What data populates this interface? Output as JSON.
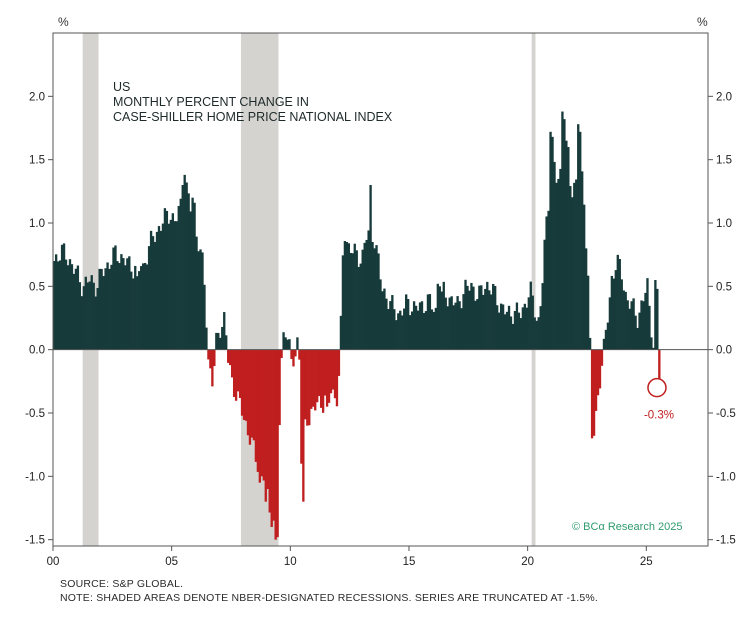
{
  "chart_data": {
    "type": "bar",
    "title_lines": [
      "US",
      "MONTHLY PERCENT CHANGE IN",
      "CASE-SHILLER HOME PRICE NATIONAL INDEX"
    ],
    "y_unit_left": "%",
    "y_unit_right": "%",
    "ylim": [
      -1.55,
      2.5
    ],
    "y_ticks": [
      "2.0",
      "1.5",
      "1.0",
      "0.5",
      "0.0",
      "-0.5",
      "-1.0",
      "-1.5"
    ],
    "y_tick_values": [
      2.0,
      1.5,
      1.0,
      0.5,
      0.0,
      -0.5,
      -1.0,
      -1.5
    ],
    "xlim": [
      2000.0,
      2027.6
    ],
    "x_ticks": [
      "00",
      "05",
      "10",
      "15",
      "20",
      "25"
    ],
    "x_tick_values": [
      2000,
      2005,
      2010,
      2015,
      2020,
      2025
    ],
    "recessions": [
      [
        2001.25,
        2001.92
      ],
      [
        2007.92,
        2009.5
      ],
      [
        2020.17,
        2020.33
      ]
    ],
    "truncated_at": -1.5,
    "anchors": [
      [
        2000.0,
        0.7
      ],
      [
        2000.3,
        0.78
      ],
      [
        2000.6,
        0.72
      ],
      [
        2000.9,
        0.62
      ],
      [
        2001.2,
        0.5
      ],
      [
        2001.5,
        0.55
      ],
      [
        2001.8,
        0.5
      ],
      [
        2002.0,
        0.6
      ],
      [
        2002.3,
        0.68
      ],
      [
        2002.6,
        0.76
      ],
      [
        2002.9,
        0.72
      ],
      [
        2003.2,
        0.66
      ],
      [
        2003.5,
        0.64
      ],
      [
        2003.7,
        0.6
      ],
      [
        2004.0,
        0.82
      ],
      [
        2004.3,
        0.92
      ],
      [
        2004.6,
        1.02
      ],
      [
        2004.9,
        1.08
      ],
      [
        2005.1,
        1.0
      ],
      [
        2005.4,
        1.18
      ],
      [
        2005.6,
        1.22
      ],
      [
        2005.9,
        1.0
      ],
      [
        2006.1,
        0.84
      ],
      [
        2006.3,
        0.62
      ],
      [
        2006.4,
        0.3
      ],
      [
        2006.5,
        -0.08
      ],
      [
        2006.7,
        -0.28
      ],
      [
        2006.8,
        0.02
      ],
      [
        2007.0,
        0.18
      ],
      [
        2007.2,
        0.26
      ],
      [
        2007.3,
        -0.05
      ],
      [
        2007.5,
        -0.25
      ],
      [
        2007.8,
        -0.42
      ],
      [
        2008.1,
        -0.6
      ],
      [
        2008.3,
        -0.72
      ],
      [
        2008.5,
        -0.86
      ],
      [
        2008.7,
        -0.95
      ],
      [
        2008.9,
        -1.02
      ],
      [
        2009.1,
        -1.3
      ],
      [
        2009.3,
        -1.48
      ],
      [
        2009.45,
        -0.95
      ],
      [
        2009.55,
        -0.2
      ],
      [
        2009.7,
        0.22
      ],
      [
        2009.85,
        0.1
      ],
      [
        2010.0,
        -0.12
      ],
      [
        2010.15,
        -0.06
      ],
      [
        2010.3,
        0.14
      ],
      [
        2010.4,
        -0.4
      ],
      [
        2010.6,
        -0.62
      ],
      [
        2010.8,
        -0.5
      ],
      [
        2011.0,
        -0.45
      ],
      [
        2011.3,
        -0.42
      ],
      [
        2011.6,
        -0.3
      ],
      [
        2011.9,
        -0.4
      ],
      [
        2012.0,
        -0.2
      ],
      [
        2012.1,
        0.25
      ],
      [
        2012.2,
        0.95
      ],
      [
        2012.4,
        0.82
      ],
      [
        2012.6,
        0.78
      ],
      [
        2012.8,
        0.72
      ],
      [
        2013.0,
        0.75
      ],
      [
        2013.2,
        0.92
      ],
      [
        2013.4,
        0.88
      ],
      [
        2013.6,
        0.78
      ],
      [
        2013.8,
        0.5
      ],
      [
        2014.0,
        0.42
      ],
      [
        2014.3,
        0.32
      ],
      [
        2014.6,
        0.28
      ],
      [
        2014.9,
        0.38
      ],
      [
        2015.2,
        0.32
      ],
      [
        2015.5,
        0.35
      ],
      [
        2015.8,
        0.38
      ],
      [
        2016.1,
        0.3
      ],
      [
        2016.4,
        0.45
      ],
      [
        2016.7,
        0.4
      ],
      [
        2017.0,
        0.35
      ],
      [
        2017.3,
        0.48
      ],
      [
        2017.6,
        0.5
      ],
      [
        2017.9,
        0.42
      ],
      [
        2018.2,
        0.52
      ],
      [
        2018.5,
        0.46
      ],
      [
        2018.8,
        0.35
      ],
      [
        2019.1,
        0.28
      ],
      [
        2019.4,
        0.3
      ],
      [
        2019.7,
        0.28
      ],
      [
        2019.9,
        0.4
      ],
      [
        2020.1,
        0.45
      ],
      [
        2020.25,
        0.32
      ],
      [
        2020.4,
        0.2
      ],
      [
        2020.55,
        0.45
      ],
      [
        2020.7,
        0.9
      ],
      [
        2020.9,
        1.3
      ],
      [
        2021.0,
        1.55
      ],
      [
        2021.2,
        1.3
      ],
      [
        2021.4,
        1.42
      ],
      [
        2021.6,
        1.55
      ],
      [
        2021.8,
        1.22
      ],
      [
        2022.0,
        1.35
      ],
      [
        2022.2,
        1.42
      ],
      [
        2022.35,
        1.1
      ],
      [
        2022.5,
        0.6
      ],
      [
        2022.6,
        -0.05
      ],
      [
        2022.7,
        -0.4
      ],
      [
        2022.8,
        -0.62
      ],
      [
        2023.0,
        -0.22
      ],
      [
        2023.1,
        -0.05
      ],
      [
        2023.3,
        0.18
      ],
      [
        2023.5,
        0.55
      ],
      [
        2023.7,
        0.72
      ],
      [
        2023.9,
        0.6
      ],
      [
        2024.1,
        0.42
      ],
      [
        2024.3,
        0.36
      ],
      [
        2024.6,
        0.25
      ],
      [
        2024.8,
        0.38
      ],
      [
        2025.0,
        0.5
      ],
      [
        2025.15,
        0.22
      ],
      [
        2025.3,
        -0.05
      ],
      [
        2025.4,
        -0.18
      ],
      [
        2025.5,
        -0.2
      ]
    ],
    "spikes": [
      [
        2003.5,
        0.58,
        0.62
      ],
      [
        2003.6,
        0.62,
        0.66
      ],
      [
        2005.4,
        1.3,
        1.26
      ],
      [
        2005.5,
        1.38,
        1.32
      ],
      [
        2005.8,
        1.2,
        1.16
      ],
      [
        2008.7,
        -1.05,
        -1.0
      ],
      [
        2008.9,
        -1.2,
        -1.1
      ],
      [
        2009.2,
        -1.4,
        -1.35
      ],
      [
        2009.3,
        -1.5,
        -1.48
      ],
      [
        2010.4,
        -0.9,
        -0.85
      ],
      [
        2010.5,
        -1.2,
        -1.1
      ],
      [
        2010.6,
        -0.55,
        -0.6
      ],
      [
        2011.5,
        -0.45,
        -0.42
      ],
      [
        2013.3,
        1.46,
        1.42
      ],
      [
        2013.35,
        1.3,
        1.24
      ],
      [
        2013.4,
        0.85,
        0.8
      ],
      [
        2016.2,
        0.52,
        0.5
      ],
      [
        2020.9,
        1.72,
        1.68
      ],
      [
        2021.45,
        1.88,
        1.82
      ],
      [
        2021.55,
        1.65,
        1.6
      ],
      [
        2022.1,
        1.78,
        1.72
      ],
      [
        2022.7,
        -0.7,
        -0.68
      ],
      [
        2025.35,
        0.55,
        0.48
      ]
    ],
    "latest_value_label": "-0.3%",
    "latest_value": -0.3,
    "latest_x": 2025.45,
    "positive_color": "#173a3a",
    "negative_color": "#c01f1f",
    "recession_color": "#d4d3d0",
    "credit": "© BCα Research 2025",
    "source": "SOURCE: S&P GLOBAL.",
    "note": "NOTE: SHADED AREAS DENOTE NBER-DESIGNATED RECESSIONS. SERIES ARE TRUNCATED AT -1.5%."
  }
}
